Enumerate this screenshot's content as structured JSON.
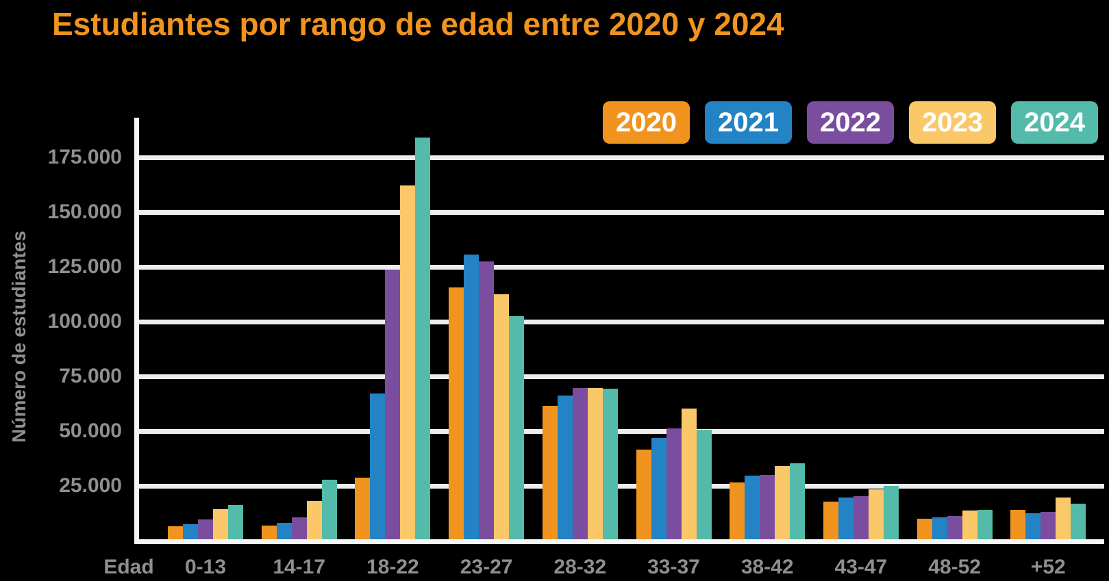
{
  "title": "Estudiantes por rango de edad entre 2020 y 2024",
  "colors": {
    "background": "#000000",
    "title": "#F0941F",
    "axis_text": "#8F8F8F",
    "gridline": "#EDEDED",
    "axis_line": "#F5F5F5",
    "legend_text": "#FFFFFF"
  },
  "legend": [
    {
      "label": "2020",
      "color": "#F0941F"
    },
    {
      "label": "2021",
      "color": "#2383C5"
    },
    {
      "label": "2022",
      "color": "#7B4D9E"
    },
    {
      "label": "2023",
      "color": "#FAC869"
    },
    {
      "label": "2024",
      "color": "#54BAA9"
    }
  ],
  "x_axis_caption": "Edad",
  "chart_data": {
    "type": "bar",
    "title": "Estudiantes por rango de edad entre 2020 y 2024",
    "xlabel": "Edad",
    "ylabel": "Número de estudiantes",
    "categories": [
      "0-13",
      "14-17",
      "18-22",
      "23-27",
      "28-32",
      "33-37",
      "38-42",
      "43-47",
      "48-52",
      "+52"
    ],
    "series": [
      {
        "name": "2020",
        "color": "#F0941F",
        "values": [
          5800,
          6300,
          28000,
          115000,
          61000,
          41000,
          25800,
          17200,
          9400,
          13300
        ]
      },
      {
        "name": "2021",
        "color": "#2383C5",
        "values": [
          7000,
          7500,
          66500,
          130000,
          65500,
          46200,
          29200,
          19000,
          10000,
          11800
        ]
      },
      {
        "name": "2022",
        "color": "#7B4D9E",
        "values": [
          9200,
          10000,
          123000,
          127000,
          69000,
          50500,
          29500,
          19600,
          10600,
          12500
        ]
      },
      {
        "name": "2023",
        "color": "#FAC869",
        "values": [
          13800,
          17400,
          161500,
          112000,
          69000,
          59700,
          33300,
          22700,
          13000,
          19000
        ]
      },
      {
        "name": "2024",
        "color": "#54BAA9",
        "values": [
          15600,
          27300,
          183500,
          102000,
          68800,
          50000,
          34600,
          24300,
          13500,
          16200
        ]
      }
    ],
    "y_ticks": [
      {
        "label": "175.000",
        "value": 175000
      },
      {
        "label": "150.000",
        "value": 150000
      },
      {
        "label": "125.000",
        "value": 125000
      },
      {
        "label": "100.000",
        "value": 100000
      },
      {
        "label": "75.000",
        "value": 75000
      },
      {
        "label": "50.000",
        "value": 50000
      },
      {
        "label": "25.000",
        "value": 25000
      }
    ],
    "ylim": [
      0,
      193000
    ],
    "grid": true,
    "legend_position": "top-right"
  }
}
